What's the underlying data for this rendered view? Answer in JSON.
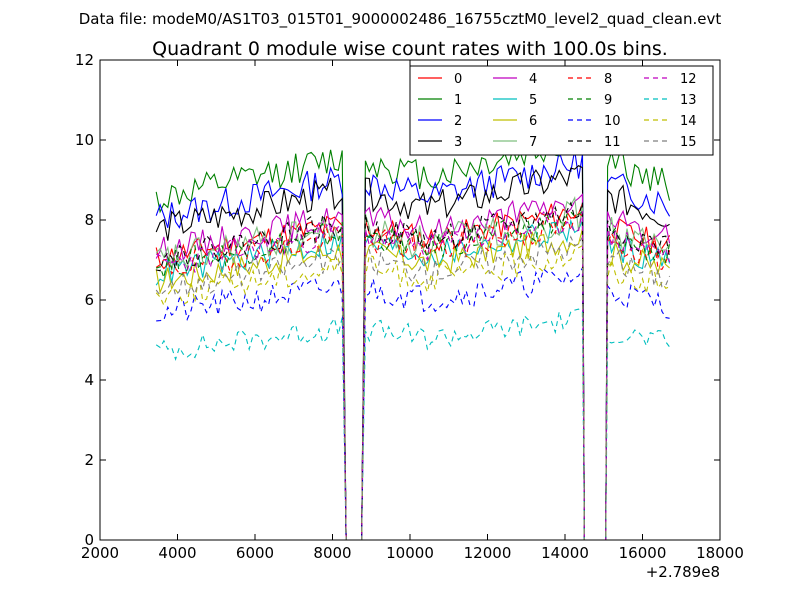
{
  "figure": {
    "suptitle": "Data file: modeM0/AS1T03_015T01_9000002486_16755cztM0_level2_quad_clean.evt"
  },
  "chart_data": {
    "type": "line",
    "title": "Quadrant 0 module wise count rates with 100.0s bins.",
    "xlabel": "",
    "ylabel": "",
    "xlim": [
      2000,
      18000
    ],
    "ylim": [
      0,
      12
    ],
    "x_offset_label": "+2.789e8",
    "xticks": [
      2000,
      4000,
      6000,
      8000,
      10000,
      12000,
      14000,
      16000,
      18000
    ],
    "xtick_labels": [
      "2000",
      "4000",
      "6000",
      "8000",
      "10000",
      "12000",
      "14000",
      "16000",
      "18000"
    ],
    "yticks": [
      0,
      2,
      4,
      6,
      8,
      10,
      12
    ],
    "ytick_labels": [
      "0",
      "2",
      "4",
      "6",
      "8",
      "10",
      "12"
    ],
    "segments": [
      {
        "start": 3450,
        "end": 8250
      },
      {
        "start": 8850,
        "end": 14450
      },
      {
        "start": 15100,
        "end": 16700
      }
    ],
    "gaps": [
      {
        "from": 8250,
        "down": 8350,
        "up": 8750,
        "to": 8850
      },
      {
        "from": 14450,
        "down": 14500,
        "up": 15050,
        "to": 15100
      }
    ],
    "bin_width": 100,
    "legend": {
      "location": "upper right",
      "ncol": 4
    },
    "series": [
      {
        "name": "0",
        "color": "#ff0000",
        "dash": "solid",
        "level": 7.6,
        "noise": 0.35,
        "seed": 11
      },
      {
        "name": "1",
        "color": "#008000",
        "dash": "solid",
        "level": 9.2,
        "noise": 0.4,
        "seed": 12
      },
      {
        "name": "2",
        "color": "#0000ff",
        "dash": "solid",
        "level": 8.7,
        "noise": 0.4,
        "seed": 13
      },
      {
        "name": "3",
        "color": "#000000",
        "dash": "solid",
        "level": 8.4,
        "noise": 0.4,
        "seed": 14
      },
      {
        "name": "4",
        "color": "#bf00bf",
        "dash": "solid",
        "level": 7.8,
        "noise": 0.35,
        "seed": 15
      },
      {
        "name": "5",
        "color": "#00bfbf",
        "dash": "solid",
        "level": 7.2,
        "noise": 0.35,
        "seed": 16
      },
      {
        "name": "6",
        "color": "#bfbf00",
        "dash": "solid",
        "level": 7.0,
        "noise": 0.35,
        "seed": 17
      },
      {
        "name": "7",
        "color": "#7fbf7f",
        "dash": "solid",
        "level": 7.5,
        "noise": 0.45,
        "seed": 18
      },
      {
        "name": "8",
        "color": "#ff0000",
        "dash": "dashed",
        "level": 7.3,
        "noise": 0.35,
        "seed": 19
      },
      {
        "name": "9",
        "color": "#008000",
        "dash": "dashed",
        "level": 7.4,
        "noise": 0.35,
        "seed": 20
      },
      {
        "name": "10",
        "color": "#0000ff",
        "dash": "dashed",
        "level": 6.1,
        "noise": 0.35,
        "seed": 21
      },
      {
        "name": "11",
        "color": "#000000",
        "dash": "dashed",
        "level": 7.6,
        "noise": 0.35,
        "seed": 22
      },
      {
        "name": "12",
        "color": "#bf00bf",
        "dash": "dashed",
        "level": 7.4,
        "noise": 0.35,
        "seed": 23
      },
      {
        "name": "13",
        "color": "#00bfbf",
        "dash": "dashed",
        "level": 5.1,
        "noise": 0.3,
        "seed": 24
      },
      {
        "name": "14",
        "color": "#bfbf00",
        "dash": "dashed",
        "level": 6.6,
        "noise": 0.35,
        "seed": 25
      },
      {
        "name": "15",
        "color": "#7f7f7f",
        "dash": "dashed",
        "level": 6.8,
        "noise": 0.35,
        "seed": 26
      }
    ]
  }
}
